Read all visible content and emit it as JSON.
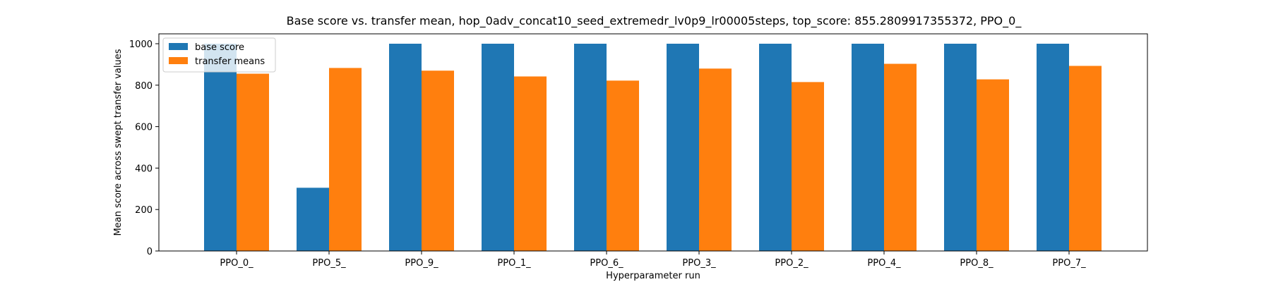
{
  "chart_data": {
    "type": "bar",
    "title": "Base score vs. transfer mean, hop_0adv_concat10_seed_extremedr_lv0p9_lr00005steps, top_score: 855.2809917355372, PPO_0_",
    "xlabel": "Hyperparameter run",
    "ylabel": "Mean score across swept transfer values",
    "categories": [
      "PPO_0_",
      "PPO_5_",
      "PPO_9_",
      "PPO_1_",
      "PPO_6_",
      "PPO_3_",
      "PPO_2_",
      "PPO_4_",
      "PPO_8_",
      "PPO_7_"
    ],
    "series": [
      {
        "name": "base score",
        "color": "#1f77b4",
        "values": [
          1000,
          305,
          1000,
          1000,
          1000,
          1000,
          1000,
          1000,
          1000,
          1000
        ]
      },
      {
        "name": "transfer means",
        "color": "#ff7f0e",
        "values": [
          855.3,
          883,
          870,
          842,
          822,
          880,
          815,
          903,
          828,
          893
        ]
      }
    ],
    "ylim": [
      0,
      1000
    ],
    "yticks": [
      0,
      200,
      400,
      600,
      800,
      1000
    ],
    "grid": false,
    "legend_position": "top-left"
  }
}
